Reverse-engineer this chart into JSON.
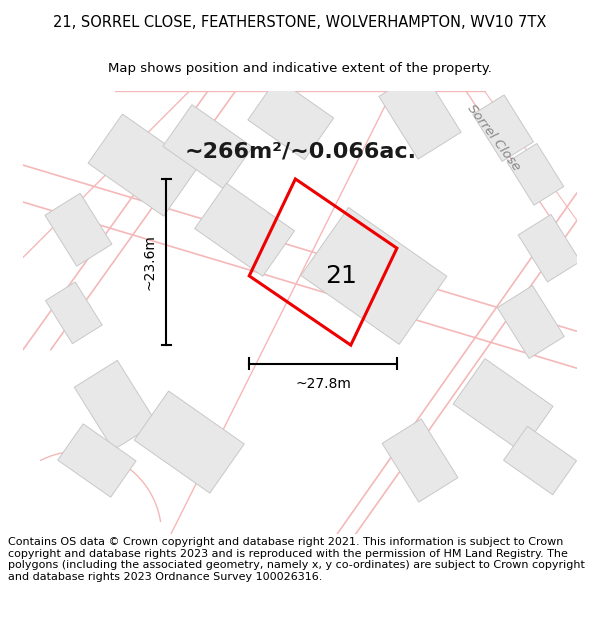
{
  "title_line1": "21, SORREL CLOSE, FEATHERSTONE, WOLVERHAMPTON, WV10 7TX",
  "title_line2": "Map shows position and indicative extent of the property.",
  "area_text": "~266m²/~0.066ac.",
  "label_number": "21",
  "dim_width": "~27.8m",
  "dim_height": "~23.6m",
  "street_label": "Sorrel Close",
  "footer_text": "Contains OS data © Crown copyright and database right 2021. This information is subject to Crown copyright and database rights 2023 and is reproduced with the permission of HM Land Registry. The polygons (including the associated geometry, namely x, y co-ordinates) are subject to Crown copyright and database rights 2023 Ordnance Survey 100026316.",
  "bg_color": "#ffffff",
  "map_bg": "#ffffff",
  "building_fill": "#e8e8e8",
  "building_edge": "#c8c8c8",
  "road_color": "#f5b8b8",
  "property_color": "#ee0000",
  "title_fontsize": 10.5,
  "subtitle_fontsize": 9.5,
  "area_fontsize": 16,
  "label_fontsize": 18,
  "footer_fontsize": 8.0,
  "street_fontsize": 9.5
}
